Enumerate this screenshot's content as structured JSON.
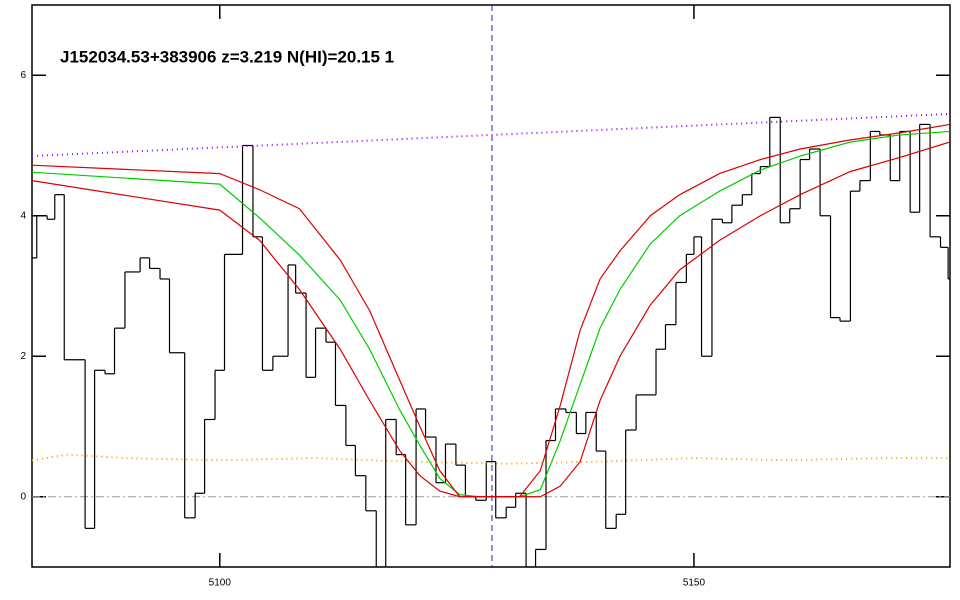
{
  "chart_data": {
    "type": "spectrum",
    "title": "J152034.53+383906 z=3.219 N(HI)=20.15 1",
    "xlim": [
      5080.2,
      5177.0
    ],
    "ylim": [
      -1,
      7
    ],
    "xticks": [
      5100,
      5150
    ],
    "yticks": [
      0,
      2,
      4,
      6
    ],
    "vline": {
      "value": 5128.7,
      "color": "#2222cc"
    },
    "hline": {
      "value": 0,
      "color": "#999999"
    },
    "series": [
      {
        "style": "steps",
        "color": "#000000",
        "x": [
          5080.2,
          5080.7,
          5081.8,
          5082.6,
          5083.6,
          5085.8,
          5086.8,
          5087.9,
          5088.9,
          5090.0,
          5091.6,
          5092.6,
          5093.7,
          5094.7,
          5096.3,
          5097.4,
          5098.4,
          5099.5,
          5100.5,
          5102.4,
          5103.5,
          5104.5,
          5105.6,
          5107.2,
          5108.0,
          5109.1,
          5110.1,
          5111.2,
          5112.2,
          5113.3,
          5114.3,
          5115.4,
          5116.5,
          5117.5,
          5118.6,
          5119.6,
          5120.7,
          5121.7,
          5122.8,
          5123.8,
          5124.9,
          5125.9,
          5127.0,
          5128.1,
          5129.1,
          5130.2,
          5131.2,
          5132.3,
          5133.3,
          5134.4,
          5135.4,
          5136.5,
          5137.6,
          5138.6,
          5139.7,
          5140.7,
          5141.8,
          5142.8,
          5143.9,
          5144.9,
          5146.0,
          5147.0,
          5148.1,
          5149.2,
          5150.0,
          5150.8,
          5151.9,
          5153.0,
          5154.0,
          5155.1,
          5156.1,
          5157.0,
          5158.0,
          5159.1,
          5160.1,
          5161.2,
          5162.2,
          5163.3,
          5164.4,
          5165.4,
          5166.5,
          5167.5,
          5168.6,
          5169.6,
          5170.7,
          5171.7,
          5172.8,
          5173.8,
          5174.9,
          5176.0,
          5176.8
        ],
        "values": [
          3.4,
          4.0,
          3.95,
          4.3,
          1.95,
          -0.45,
          1.8,
          1.75,
          2.4,
          3.2,
          3.4,
          3.25,
          3.1,
          2.05,
          -0.3,
          0.05,
          1.1,
          1.8,
          3.45,
          5.0,
          3.7,
          1.8,
          2.0,
          3.3,
          2.9,
          1.7,
          2.4,
          2.2,
          1.3,
          0.73,
          0.3,
          -0.2,
          -1.0,
          1.1,
          0.6,
          -0.4,
          1.25,
          0.85,
          0.2,
          0.75,
          0.45,
          0.0,
          -0.05,
          0.5,
          -0.3,
          -0.15,
          0.05,
          -1.0,
          -0.75,
          0.8,
          1.25,
          1.2,
          0.9,
          1.2,
          0.65,
          -0.45,
          -0.25,
          0.95,
          1.45,
          1.45,
          2.1,
          2.45,
          3.05,
          3.45,
          3.7,
          2.0,
          3.95,
          3.9,
          4.15,
          4.3,
          4.6,
          4.7,
          5.4,
          3.9,
          4.1,
          4.8,
          4.95,
          4.0,
          2.55,
          2.5,
          4.35,
          4.5,
          5.2,
          5.15,
          4.5,
          5.2,
          4.05,
          5.3,
          3.7,
          3.55,
          3.1
        ]
      },
      {
        "style": "line",
        "color": "#00cc00",
        "x": [
          5080.2,
          5100,
          5104.2,
          5108.4,
          5112.7,
          5115.8,
          5119.0,
          5121.1,
          5123.2,
          5125.3,
          5127.4,
          5129.5,
          5131.6,
          5133.8,
          5135.9,
          5138.0,
          5140.1,
          5142.2,
          5145.4,
          5148.5,
          5152.7,
          5157.0,
          5161.2,
          5166.5,
          5171.7,
          5177.0
        ],
        "values": [
          4.62,
          4.45,
          3.97,
          3.44,
          2.8,
          2.1,
          1.23,
          0.73,
          0.26,
          0.03,
          0,
          0,
          0,
          0.1,
          0.8,
          1.6,
          2.4,
          2.95,
          3.6,
          4.0,
          4.35,
          4.65,
          4.85,
          5.05,
          5.15,
          5.2
        ]
      },
      {
        "style": "line",
        "color": "#dd0000",
        "x": [
          5080.2,
          5100,
          5104.2,
          5108.4,
          5112.7,
          5115.8,
          5119.0,
          5121.1,
          5123.2,
          5125.3,
          5127.4,
          5129.5,
          5131.6,
          5133.8,
          5135.9,
          5138.0,
          5140.1,
          5142.2,
          5145.4,
          5148.5,
          5152.7,
          5157.0,
          5161.2,
          5166.5,
          5171.7,
          5177.0
        ],
        "values": [
          4.72,
          4.6,
          4.37,
          4.1,
          3.37,
          2.65,
          1.65,
          1.0,
          0.37,
          0,
          0,
          0,
          0,
          0.37,
          1.3,
          2.37,
          3.1,
          3.5,
          4.0,
          4.3,
          4.6,
          4.8,
          4.95,
          5.08,
          5.18,
          5.3
        ]
      },
      {
        "style": "line",
        "color": "#dd0000",
        "x": [
          5080.2,
          5100,
          5104.2,
          5108.4,
          5112.7,
          5115.8,
          5119.0,
          5121.1,
          5123.2,
          5125.3,
          5127.4,
          5129.5,
          5131.6,
          5133.8,
          5135.9,
          5138.0,
          5140.1,
          5142.2,
          5145.4,
          5148.5,
          5152.7,
          5157.0,
          5161.2,
          5166.5,
          5171.7,
          5177.0
        ],
        "values": [
          4.5,
          4.08,
          3.65,
          2.95,
          2.1,
          1.37,
          0.65,
          0.3,
          0.08,
          0,
          0,
          0,
          0,
          0,
          0.15,
          0.5,
          1.37,
          2.0,
          2.73,
          3.23,
          3.65,
          4.0,
          4.3,
          4.63,
          4.83,
          5.05
        ]
      },
      {
        "style": "dotted",
        "color": "#9900ff",
        "x": [
          5080.2,
          5177.0
        ],
        "values": [
          4.85,
          5.45
        ]
      },
      {
        "style": "dotted",
        "color": "#ff9900",
        "x": [
          5080.2,
          5084,
          5090,
          5100,
          5110,
          5120,
          5130,
          5140,
          5150,
          5160,
          5170,
          5177.0
        ],
        "values": [
          0.52,
          0.6,
          0.55,
          0.52,
          0.55,
          0.5,
          0.47,
          0.5,
          0.55,
          0.52,
          0.55,
          0.55
        ]
      }
    ]
  }
}
